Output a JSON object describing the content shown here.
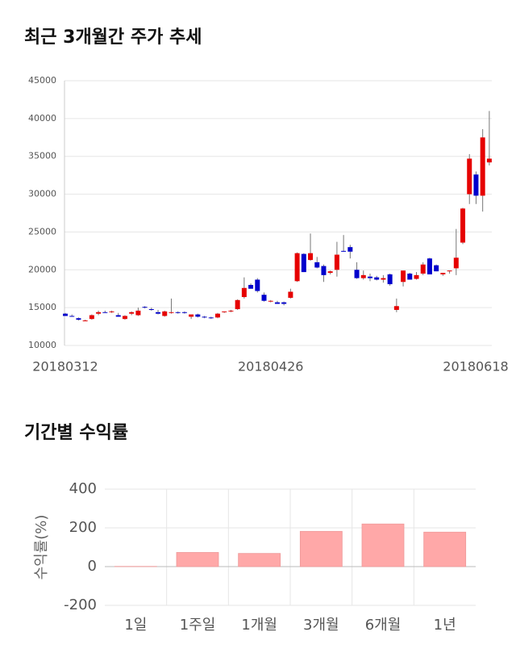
{
  "chart_data": [
    {
      "type": "candlestick",
      "title": "최근 3개월간 주가 추세",
      "categories": [
        "20180312",
        null,
        null,
        null,
        null,
        null,
        null,
        null,
        null,
        null,
        null,
        null,
        null,
        null,
        null,
        null,
        null,
        null,
        null,
        null,
        null,
        null,
        null,
        null,
        null,
        null,
        null,
        null,
        null,
        null,
        null,
        "20180426",
        null,
        null,
        null,
        null,
        null,
        null,
        null,
        null,
        null,
        null,
        null,
        null,
        null,
        null,
        null,
        null,
        null,
        null,
        null,
        null,
        null,
        null,
        null,
        null,
        null,
        null,
        null,
        null,
        null,
        null,
        null,
        null,
        "20180618"
      ],
      "open": [
        14200,
        13900,
        13600,
        13300,
        13500,
        14200,
        14400,
        14400,
        14000,
        13500,
        14200,
        14000,
        15100,
        14800,
        14400,
        13900,
        14300,
        14400,
        14400,
        13800,
        14100,
        13800,
        13700,
        13700,
        14400,
        14600,
        14800,
        16400,
        18000,
        18700,
        16700,
        15900,
        15700,
        15700,
        16300,
        18500,
        22100,
        21300,
        21000,
        20500,
        19600,
        20000,
        22500,
        23000,
        20000,
        18900,
        19100,
        19000,
        18700,
        19400,
        14700,
        18400,
        19500,
        18800,
        19500,
        21500,
        20600,
        19400,
        19800,
        20200,
        23600,
        30000,
        32600,
        29800,
        34200
      ],
      "high": [
        14300,
        14100,
        13700,
        13400,
        14100,
        14600,
        14600,
        14600,
        14300,
        14000,
        14500,
        15000,
        15200,
        15000,
        14700,
        14600,
        16200,
        14500,
        14500,
        14000,
        14200,
        13900,
        13800,
        14300,
        14500,
        14700,
        16100,
        19000,
        18200,
        18900,
        17000,
        16000,
        15900,
        15800,
        17500,
        22300,
        22200,
        24800,
        21700,
        20700,
        19900,
        23700,
        24600,
        23300,
        21000,
        19900,
        19500,
        19200,
        19300,
        19500,
        16200,
        19900,
        19600,
        19700,
        21000,
        21600,
        20700,
        19600,
        19900,
        25400,
        28200,
        35300,
        33000,
        38600,
        41000
      ],
      "low": [
        13900,
        13800,
        13300,
        13200,
        13400,
        14000,
        14300,
        14300,
        13800,
        13400,
        14000,
        13900,
        14900,
        14600,
        14100,
        13800,
        14200,
        14200,
        14200,
        13500,
        13700,
        13600,
        13500,
        13600,
        14300,
        14400,
        14700,
        16200,
        17500,
        17000,
        15800,
        15700,
        15500,
        15300,
        16200,
        18400,
        19700,
        21200,
        20200,
        18400,
        19400,
        19100,
        22400,
        21500,
        18800,
        18700,
        18500,
        18600,
        18300,
        17900,
        14400,
        17800,
        18800,
        18700,
        19300,
        19500,
        19800,
        19200,
        19500,
        19300,
        23400,
        28700,
        28700,
        27700,
        33800
      ],
      "close": [
        13900,
        13800,
        13400,
        13300,
        14000,
        14400,
        14300,
        14500,
        13800,
        13900,
        14400,
        14600,
        15000,
        14700,
        14200,
        14500,
        14400,
        14300,
        14300,
        14100,
        13800,
        13700,
        13600,
        14200,
        14500,
        14600,
        16000,
        17600,
        17500,
        17200,
        15900,
        15900,
        15500,
        15500,
        17100,
        22200,
        19700,
        22200,
        20300,
        19300,
        19800,
        22000,
        22400,
        22400,
        18900,
        19300,
        18900,
        18700,
        18900,
        18100,
        15200,
        19900,
        18700,
        19300,
        20700,
        19400,
        19800,
        19600,
        19900,
        21600,
        28100,
        34700,
        29800,
        37500,
        34700
      ],
      "up_color": "#e60000",
      "down_color": "#0000cc",
      "ylim": [
        10000,
        45000
      ],
      "yticks": [
        10000,
        15000,
        20000,
        25000,
        30000,
        35000,
        40000,
        45000
      ],
      "grid": true
    },
    {
      "type": "bar",
      "title": "기간별 수익률",
      "ylabel": "수익률(%)",
      "categories": [
        "1일",
        "1주일",
        "1개월",
        "3개월",
        "6개월",
        "1년"
      ],
      "values": [
        1,
        73,
        68,
        182,
        220,
        178
      ],
      "color": "#ffa8a8",
      "ylim": [
        -200,
        400
      ],
      "yticks": [
        -200,
        0,
        200,
        400
      ],
      "grid": true
    }
  ]
}
